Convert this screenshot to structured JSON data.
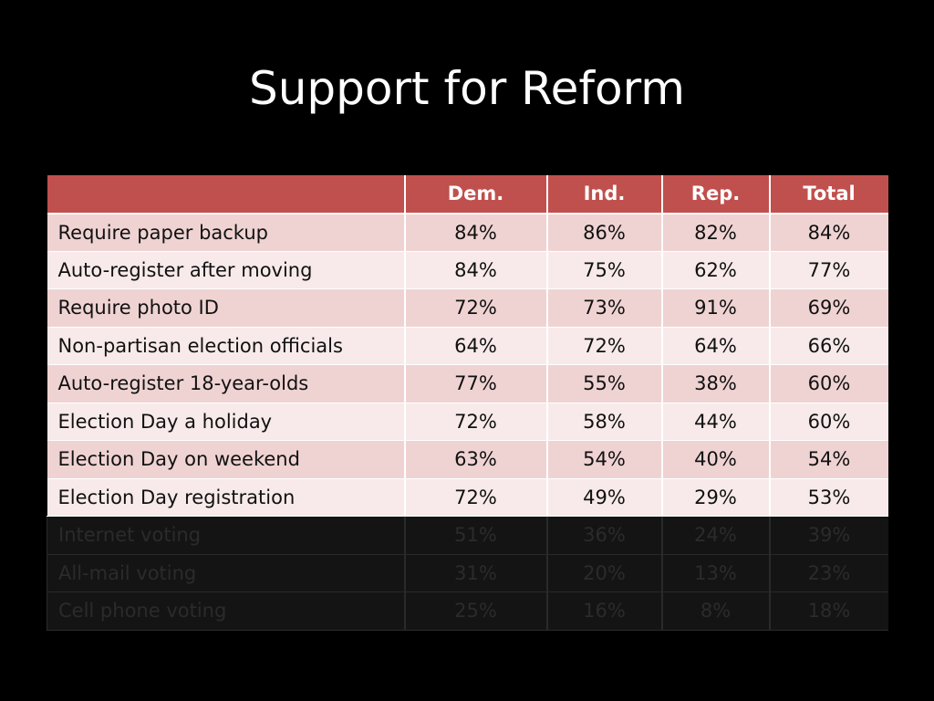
{
  "slide": {
    "title": "Support for Reform"
  },
  "table": {
    "headers": [
      "",
      "Dem.",
      "Ind.",
      "Rep.",
      "Total"
    ],
    "rows": [
      {
        "label": "Require paper backup",
        "dem": "84%",
        "ind": "86%",
        "rep": "82%",
        "total": "84%"
      },
      {
        "label": "Auto-register after moving",
        "dem": "84%",
        "ind": "75%",
        "rep": "62%",
        "total": "77%"
      },
      {
        "label": "Require photo ID",
        "dem": "72%",
        "ind": "73%",
        "rep": "91%",
        "total": "69%"
      },
      {
        "label": "Non-partisan election officials",
        "dem": "64%",
        "ind": "72%",
        "rep": "64%",
        "total": "66%"
      },
      {
        "label": "Auto-register 18-year-olds",
        "dem": "77%",
        "ind": "55%",
        "rep": "38%",
        "total": "60%"
      },
      {
        "label": "Election Day a holiday",
        "dem": "72%",
        "ind": "58%",
        "rep": "44%",
        "total": "60%"
      },
      {
        "label": "Election Day on weekend",
        "dem": "63%",
        "ind": "54%",
        "rep": "40%",
        "total": "54%"
      },
      {
        "label": "Election Day registration",
        "dem": "72%",
        "ind": "49%",
        "rep": "29%",
        "total": "53%"
      },
      {
        "label": "Internet voting",
        "dem": "51%",
        "ind": "36%",
        "rep": "24%",
        "total": "39%"
      },
      {
        "label": "All-mail voting",
        "dem": "31%",
        "ind": "20%",
        "rep": "13%",
        "total": "23%"
      },
      {
        "label": "Cell phone voting",
        "dem": "25%",
        "ind": "16%",
        "rep": "8%",
        "total": "18%"
      }
    ]
  },
  "colors": {
    "background": "#000000",
    "header": "#c0504d",
    "row_odd": "#efd3d2",
    "row_even": "#f8eaea",
    "row_dimmed": "#141414"
  }
}
